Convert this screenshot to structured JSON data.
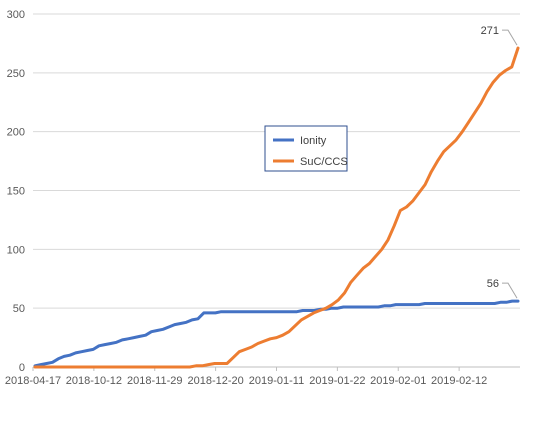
{
  "chart_data": {
    "type": "line",
    "title": "",
    "xlabel": "",
    "ylabel": "",
    "ylim": [
      0,
      300
    ],
    "y_ticks": [
      0,
      50,
      100,
      150,
      200,
      250,
      300
    ],
    "x_tick_labels": [
      "2018-04-17",
      "2018-10-12",
      "2018-11-29",
      "2018-12-20",
      "2019-01-11",
      "2019-01-22",
      "2019-02-01",
      "2019-02-12"
    ],
    "grid": "horizontal",
    "legend_position": "center",
    "series": [
      {
        "name": "Ionity",
        "color": "#4472C4",
        "end_label": "56",
        "values": [
          1,
          2,
          3,
          4,
          7,
          9,
          10,
          12,
          13,
          14,
          15,
          18,
          19,
          20,
          21,
          23,
          24,
          25,
          26,
          27,
          30,
          31,
          32,
          34,
          36,
          37,
          38,
          40,
          41,
          46,
          46,
          46,
          47,
          47,
          47,
          47,
          47,
          47,
          47,
          47,
          47,
          47,
          47,
          47,
          47,
          47,
          48,
          48,
          48,
          49,
          49,
          50,
          50,
          51,
          51,
          51,
          51,
          51,
          51,
          51,
          52,
          52,
          53,
          53,
          53,
          53,
          53,
          54,
          54,
          54,
          54,
          54,
          54,
          54,
          54,
          54,
          54,
          54,
          54,
          54,
          55,
          55,
          56,
          56
        ]
      },
      {
        "name": "SuC/CCS",
        "color": "#ED7D31",
        "end_label": "271",
        "values": [
          0,
          0,
          0,
          0,
          0,
          0,
          0,
          0,
          0,
          0,
          0,
          0,
          0,
          0,
          0,
          0,
          0,
          0,
          0,
          0,
          0,
          0,
          0,
          0,
          0,
          0,
          1,
          1,
          2,
          3,
          3,
          3,
          8,
          13,
          15,
          17,
          20,
          22,
          24,
          25,
          27,
          30,
          35,
          40,
          43,
          46,
          48,
          50,
          53,
          57,
          63,
          72,
          78,
          84,
          88,
          94,
          100,
          108,
          120,
          133,
          136,
          141,
          148,
          155,
          166,
          175,
          183,
          188,
          193,
          200,
          208,
          216,
          224,
          234,
          242,
          248,
          252,
          255,
          271
        ]
      }
    ]
  }
}
